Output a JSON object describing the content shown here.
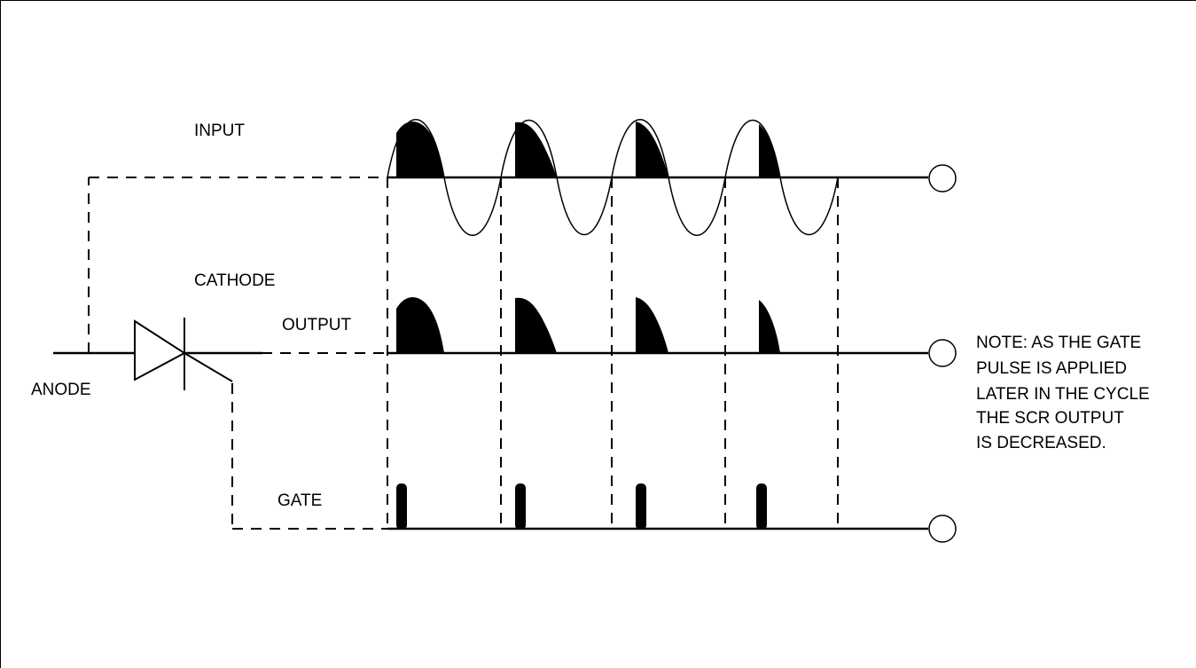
{
  "labels": {
    "input": "INPUT",
    "cathode": "CATHODE",
    "output": "OUTPUT",
    "anode": "ANODE",
    "gate": "GATE"
  },
  "note": [
    "NOTE: AS THE GATE",
    "PULSE IS APPLIED",
    "LATER IN THE CYCLE",
    "THE SCR OUTPUT",
    "IS DECREASED."
  ],
  "colors": {
    "ink": "#000000",
    "background": "#ffffff"
  }
}
